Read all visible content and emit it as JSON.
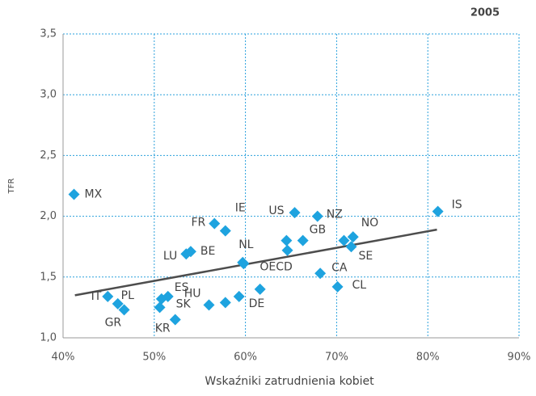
{
  "chart_data": {
    "type": "scatter",
    "title": "2005",
    "xlabel": "Wskaźniki zatrudnienia kobiet",
    "ylabel": "TFR",
    "xlim": [
      40,
      90
    ],
    "ylim": [
      1.0,
      3.5
    ],
    "xticks": [
      {
        "value": 40,
        "label": "40%"
      },
      {
        "value": 50,
        "label": "50%"
      },
      {
        "value": 60,
        "label": "60%"
      },
      {
        "value": 70,
        "label": "70%"
      },
      {
        "value": 80,
        "label": "80%"
      },
      {
        "value": 90,
        "label": "90%"
      }
    ],
    "yticks": [
      {
        "value": 1.0,
        "label": "1,0"
      },
      {
        "value": 1.5,
        "label": "1,5"
      },
      {
        "value": 2.0,
        "label": "2,0"
      },
      {
        "value": 2.5,
        "label": "2,5"
      },
      {
        "value": 3.0,
        "label": "3,0"
      },
      {
        "value": 3.5,
        "label": "3,5"
      }
    ],
    "grid": true,
    "color": "#1ea3df",
    "x": [
      41.2,
      81.1,
      65.4,
      67.9,
      56.6,
      57.8,
      71.8,
      70.8,
      71.6,
      66.3,
      64.5,
      64.6,
      53.5,
      54.0,
      59.7,
      59.8,
      68.2,
      70.1,
      61.6,
      59.3,
      56.0,
      57.8,
      51.5,
      50.8,
      50.6,
      52.3,
      44.9,
      46.0,
      46.7
    ],
    "values": [
      2.18,
      2.04,
      2.03,
      2.0,
      1.94,
      1.88,
      1.83,
      1.8,
      1.75,
      1.8,
      1.8,
      1.72,
      1.69,
      1.71,
      1.62,
      1.61,
      1.53,
      1.42,
      1.4,
      1.34,
      1.27,
      1.29,
      1.34,
      1.32,
      1.25,
      1.15,
      1.34,
      1.28,
      1.23
    ],
    "labels": [
      "MX",
      "IS",
      "US",
      "NZ",
      "FR",
      "IE",
      "NO",
      null,
      "SE",
      "GB",
      null,
      null,
      "LU",
      "BE",
      "NL",
      "OECD",
      "CA",
      "CL",
      "DE",
      null,
      "HU",
      null,
      "ES",
      null,
      "SK",
      "KR",
      "IT",
      "PL",
      "GR"
    ],
    "trendline": {
      "x": [
        41.3,
        81.0
      ],
      "values": [
        1.35,
        1.89
      ],
      "color": "#4d4d4d"
    }
  }
}
